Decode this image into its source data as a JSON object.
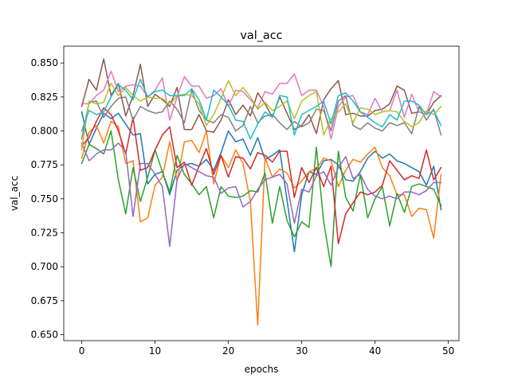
{
  "chart_data": {
    "type": "line",
    "title": "val_acc",
    "xlabel": "epochs",
    "ylabel": "val_acc",
    "xlim": [
      -2.45,
      51.45
    ],
    "ylim": [
      0.6456,
      0.8624
    ],
    "x_ticks": [
      0,
      10,
      20,
      30,
      40,
      50
    ],
    "x_tick_labels": [
      "0",
      "10",
      "20",
      "30",
      "40",
      "50"
    ],
    "y_ticks": [
      0.65,
      0.675,
      0.7,
      0.725,
      0.75,
      0.775,
      0.8,
      0.825,
      0.85
    ],
    "y_tick_labels": [
      "0.650",
      "0.675",
      "0.700",
      "0.725",
      "0.750",
      "0.775",
      "0.800",
      "0.825",
      "0.850"
    ],
    "grid": false,
    "legend": "none",
    "x": [
      0,
      1,
      2,
      3,
      4,
      5,
      6,
      7,
      8,
      9,
      10,
      11,
      12,
      13,
      14,
      15,
      16,
      17,
      18,
      19,
      20,
      21,
      22,
      23,
      24,
      25,
      26,
      27,
      28,
      29,
      30,
      31,
      32,
      33,
      34,
      35,
      36,
      37,
      38,
      39,
      40,
      41,
      42,
      43,
      44,
      45,
      46,
      47,
      48,
      49
    ],
    "series": [
      {
        "color": "#1f77b4",
        "values": [
          0.814,
          0.79,
          0.802,
          0.813,
          0.809,
          0.813,
          0.805,
          0.797,
          0.798,
          0.761,
          0.768,
          0.77,
          0.753,
          0.771,
          0.775,
          0.776,
          0.774,
          0.779,
          0.771,
          0.784,
          0.8,
          0.792,
          0.794,
          0.782,
          0.795,
          0.779,
          0.782,
          0.786,
          0.749,
          0.711,
          0.753,
          0.77,
          0.768,
          0.778,
          0.779,
          0.775,
          0.764,
          0.763,
          0.77,
          0.78,
          0.785,
          0.78,
          0.783,
          0.778,
          0.776,
          0.773,
          0.77,
          0.76,
          0.774,
          0.742
        ]
      },
      {
        "color": "#ff7f0e",
        "values": [
          0.78,
          0.799,
          0.804,
          0.791,
          0.807,
          0.803,
          0.776,
          0.778,
          0.733,
          0.736,
          0.76,
          0.766,
          0.792,
          0.763,
          0.792,
          0.793,
          0.784,
          0.8,
          0.761,
          0.782,
          0.773,
          0.786,
          0.776,
          0.748,
          0.657,
          0.78,
          0.766,
          0.772,
          0.769,
          0.758,
          0.763,
          0.77,
          0.772,
          0.78,
          0.778,
          0.759,
          0.771,
          0.779,
          0.777,
          0.783,
          0.788,
          0.773,
          0.767,
          0.753,
          0.753,
          0.737,
          0.743,
          0.742,
          0.721,
          0.768
        ]
      },
      {
        "color": "#2ca02c",
        "values": [
          0.776,
          0.79,
          0.787,
          0.783,
          0.8,
          0.764,
          0.739,
          0.773,
          0.748,
          0.766,
          0.786,
          0.77,
          0.755,
          0.782,
          0.768,
          0.761,
          0.753,
          0.759,
          0.736,
          0.759,
          0.752,
          0.751,
          0.752,
          0.756,
          0.755,
          0.769,
          0.732,
          0.759,
          0.734,
          0.722,
          0.733,
          0.729,
          0.788,
          0.733,
          0.7,
          0.785,
          0.751,
          0.741,
          0.768,
          0.736,
          0.75,
          0.759,
          0.73,
          0.754,
          0.74,
          0.759,
          0.761,
          0.759,
          0.757,
          0.745
        ]
      },
      {
        "color": "#d62728",
        "values": [
          0.789,
          0.795,
          0.807,
          0.817,
          0.812,
          0.8,
          0.783,
          0.81,
          0.771,
          0.773,
          0.786,
          0.797,
          0.803,
          0.773,
          0.777,
          0.76,
          0.774,
          0.787,
          0.768,
          0.782,
          0.766,
          0.781,
          0.78,
          0.772,
          0.784,
          0.782,
          0.777,
          0.785,
          0.785,
          0.751,
          0.773,
          0.762,
          0.773,
          0.759,
          0.774,
          0.717,
          0.739,
          0.747,
          0.755,
          0.753,
          0.755,
          0.76,
          0.778,
          0.771,
          0.764,
          0.767,
          0.765,
          0.786,
          0.764,
          0.773
        ]
      },
      {
        "color": "#9467bd",
        "values": [
          0.791,
          0.778,
          0.783,
          0.786,
          0.786,
          0.791,
          0.785,
          0.737,
          0.776,
          0.776,
          0.768,
          0.759,
          0.715,
          0.764,
          0.776,
          0.773,
          0.77,
          0.767,
          0.766,
          0.754,
          0.758,
          0.759,
          0.744,
          0.748,
          0.757,
          0.764,
          0.766,
          0.768,
          0.761,
          0.732,
          0.757,
          0.755,
          0.767,
          0.77,
          0.76,
          0.773,
          0.781,
          0.765,
          0.768,
          0.757,
          0.752,
          0.75,
          0.752,
          0.75,
          0.755,
          0.755,
          0.753,
          0.756,
          0.762,
          0.762
        ]
      },
      {
        "color": "#8c564b",
        "values": [
          0.818,
          0.838,
          0.83,
          0.853,
          0.826,
          0.835,
          0.811,
          0.826,
          0.849,
          0.818,
          0.827,
          0.823,
          0.818,
          0.832,
          0.801,
          0.801,
          0.812,
          0.8,
          0.799,
          0.808,
          0.823,
          0.812,
          0.819,
          0.811,
          0.828,
          0.82,
          0.81,
          0.825,
          0.813,
          0.801,
          0.804,
          0.812,
          0.798,
          0.823,
          0.831,
          0.837,
          0.812,
          0.813,
          0.811,
          0.811,
          0.815,
          0.816,
          0.82,
          0.833,
          0.83,
          0.813,
          0.814,
          0.812,
          0.821,
          0.826
        ]
      },
      {
        "color": "#e377c2",
        "values": [
          0.82,
          0.82,
          0.826,
          0.83,
          0.844,
          0.829,
          0.833,
          0.834,
          0.833,
          0.825,
          0.83,
          0.839,
          0.808,
          0.825,
          0.84,
          0.833,
          0.833,
          0.824,
          0.826,
          0.831,
          0.818,
          0.83,
          0.829,
          0.823,
          0.817,
          0.829,
          0.827,
          0.835,
          0.835,
          0.842,
          0.826,
          0.83,
          0.83,
          0.818,
          0.794,
          0.818,
          0.825,
          0.826,
          0.814,
          0.812,
          0.824,
          0.814,
          0.815,
          0.83,
          0.81,
          0.827,
          0.814,
          0.812,
          0.829,
          0.825
        ]
      },
      {
        "color": "#7f7f7f",
        "values": [
          0.794,
          0.821,
          0.822,
          0.81,
          0.818,
          0.824,
          0.825,
          0.808,
          0.818,
          0.815,
          0.813,
          0.814,
          0.822,
          0.816,
          0.806,
          0.83,
          0.815,
          0.808,
          0.806,
          0.812,
          0.81,
          0.8,
          0.804,
          0.818,
          0.806,
          0.811,
          0.812,
          0.806,
          0.801,
          0.807,
          0.803,
          0.806,
          0.816,
          0.815,
          0.8,
          0.822,
          0.826,
          0.804,
          0.801,
          0.806,
          0.802,
          0.8,
          0.806,
          0.804,
          0.806,
          0.798,
          0.818,
          0.808,
          0.816,
          0.797
        ]
      },
      {
        "color": "#bcbd22",
        "values": [
          0.786,
          0.822,
          0.82,
          0.821,
          0.835,
          0.826,
          0.832,
          0.826,
          0.822,
          0.825,
          0.824,
          0.824,
          0.819,
          0.826,
          0.827,
          0.826,
          0.82,
          0.804,
          0.812,
          0.824,
          0.837,
          0.826,
          0.832,
          0.825,
          0.816,
          0.821,
          0.815,
          0.818,
          0.822,
          0.809,
          0.822,
          0.826,
          0.829,
          0.797,
          0.809,
          0.814,
          0.82,
          0.806,
          0.817,
          0.816,
          0.812,
          0.814,
          0.815,
          0.814,
          0.807,
          0.803,
          0.806,
          0.815,
          0.812,
          0.818
        ]
      },
      {
        "color": "#17becf",
        "values": [
          0.8,
          0.815,
          0.812,
          0.814,
          0.825,
          0.834,
          0.83,
          0.823,
          0.838,
          0.825,
          0.829,
          0.83,
          0.826,
          0.826,
          0.826,
          0.831,
          0.823,
          0.808,
          0.83,
          0.825,
          0.819,
          0.808,
          0.807,
          0.794,
          0.805,
          0.814,
          0.81,
          0.826,
          0.825,
          0.797,
          0.812,
          0.815,
          0.818,
          0.822,
          0.805,
          0.826,
          0.828,
          0.822,
          0.814,
          0.81,
          0.806,
          0.803,
          0.812,
          0.808,
          0.822,
          0.822,
          0.819,
          0.812,
          0.815,
          0.804
        ]
      }
    ]
  }
}
